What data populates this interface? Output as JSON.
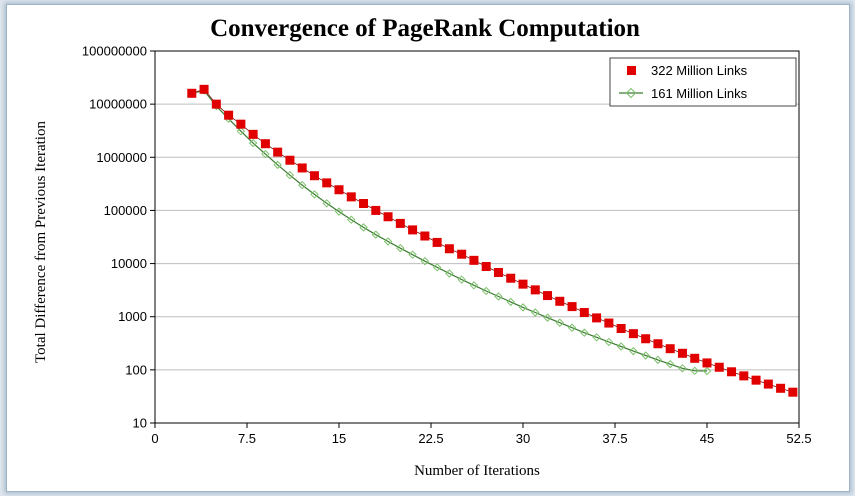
{
  "chart_data": {
    "type": "scatter",
    "title": "Convergence of PageRank Computation",
    "xlabel": "Number of Iterations",
    "ylabel": "Total Difference from Previous Iteration",
    "y_scale": "log",
    "xlim": [
      0,
      52.5
    ],
    "ylim": [
      10,
      100000000
    ],
    "x_ticks": [
      0,
      7.5,
      15,
      22.5,
      30,
      37.5,
      45,
      52.5
    ],
    "x_tick_labels": [
      "0",
      "7.5",
      "15",
      "22.5",
      "30",
      "37.5",
      "45",
      "52.5"
    ],
    "y_ticks": [
      10,
      100,
      1000,
      10000,
      100000,
      1000000,
      10000000,
      100000000
    ],
    "y_tick_labels": [
      "10",
      "100",
      "1000",
      "10000",
      "100000",
      "1000000",
      "10000000",
      "100000000"
    ],
    "grid": "horizontal",
    "legend_position": "top-right",
    "series": [
      {
        "name": "322 Million Links",
        "color": "#e00000",
        "marker": "square",
        "x": [
          3,
          4,
          5,
          6,
          7,
          8,
          9,
          10,
          11,
          12,
          13,
          14,
          15,
          16,
          17,
          18,
          19,
          20,
          21,
          22,
          23,
          24,
          25,
          26,
          27,
          28,
          29,
          30,
          31,
          32,
          33,
          34,
          35,
          36,
          37,
          38,
          39,
          40,
          41,
          42,
          43,
          44,
          45,
          46,
          47,
          48,
          49,
          50,
          51,
          52
        ],
        "y": [
          16000000,
          19000000,
          10000000,
          6200000,
          4200000,
          2700000,
          1800000,
          1250000,
          880000,
          630000,
          450000,
          330000,
          245000,
          180000,
          135000,
          100000,
          76000,
          57000,
          43000,
          33000,
          25000,
          19000,
          15000,
          11500,
          8800,
          6800,
          5300,
          4100,
          3200,
          2500,
          1950,
          1550,
          1200,
          950,
          760,
          600,
          480,
          385,
          310,
          250,
          205,
          165,
          135,
          112,
          92,
          77,
          64,
          54,
          45,
          38
        ]
      },
      {
        "name": "161 Million Links",
        "color": "#4a9a3a",
        "marker": "diamond",
        "x": [
          3,
          4,
          5,
          6,
          7,
          8,
          9,
          10,
          11,
          12,
          13,
          14,
          15,
          16,
          17,
          18,
          19,
          20,
          21,
          22,
          23,
          24,
          25,
          26,
          27,
          28,
          29,
          30,
          31,
          32,
          33,
          34,
          35,
          36,
          37,
          38,
          39,
          40,
          41,
          42,
          43,
          44,
          45
        ],
        "y": [
          16000000,
          18000000,
          9200000,
          5300000,
          3100000,
          1850000,
          1150000,
          720000,
          460000,
          300000,
          200000,
          136000,
          95000,
          67000,
          48000,
          35000,
          26000,
          19500,
          14700,
          11100,
          8500,
          6500,
          5000,
          3900,
          3050,
          2400,
          1900,
          1500,
          1200,
          960,
          770,
          620,
          500,
          410,
          335,
          275,
          225,
          186,
          154,
          128,
          107,
          96,
          95
        ]
      }
    ]
  }
}
